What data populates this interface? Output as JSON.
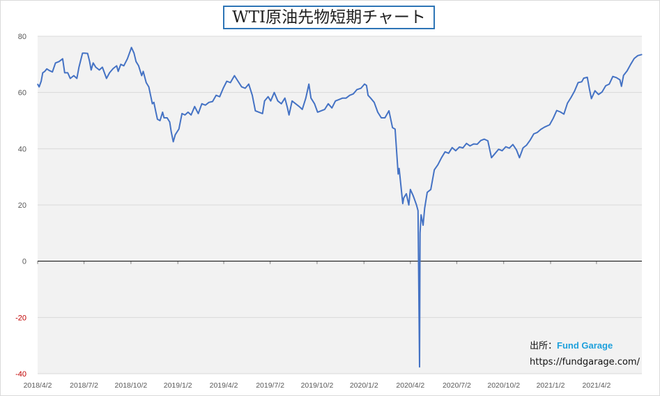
{
  "chart_data": {
    "type": "line",
    "title": "WTI原油先物短期チャート",
    "xlabel": "",
    "ylabel": "",
    "ylim": [
      -40,
      80
    ],
    "yticks": [
      -40,
      -20,
      0,
      20,
      40,
      60,
      80
    ],
    "xlim": [
      "2018-04-02",
      "2021-06-30"
    ],
    "x_tick_labels": [
      "2018/4/2",
      "2018/7/2",
      "2018/10/2",
      "2019/1/2",
      "2019/4/2",
      "2019/7/2",
      "2019/10/2",
      "2020/1/2",
      "2020/4/2",
      "2020/7/2",
      "2020/10/2",
      "2021/1/2",
      "2021/4/2"
    ],
    "grid": true,
    "legend": "none",
    "colors": {
      "line": "#4472c4",
      "zero_line": "#000000",
      "plot_bg": "#f2f2f2",
      "grid": "#d9d9d9",
      "negative_tick": "#c00000"
    },
    "series": [
      {
        "points": [
          [
            "2018-04-02",
            63.0
          ],
          [
            "2018-04-05",
            62.0
          ],
          [
            "2018-04-09",
            64.0
          ],
          [
            "2018-04-12",
            67.0
          ],
          [
            "2018-04-16",
            67.5
          ],
          [
            "2018-04-20",
            68.4
          ],
          [
            "2018-04-25",
            67.8
          ],
          [
            "2018-05-01",
            67.3
          ],
          [
            "2018-05-07",
            70.5
          ],
          [
            "2018-05-14",
            71.0
          ],
          [
            "2018-05-21",
            72.0
          ],
          [
            "2018-05-25",
            67.0
          ],
          [
            "2018-05-31",
            67.0
          ],
          [
            "2018-06-05",
            65.0
          ],
          [
            "2018-06-12",
            66.0
          ],
          [
            "2018-06-18",
            65.0
          ],
          [
            "2018-06-22",
            69.0
          ],
          [
            "2018-06-29",
            74.0
          ],
          [
            "2018-07-03",
            74.0
          ],
          [
            "2018-07-09",
            73.9
          ],
          [
            "2018-07-13",
            71.0
          ],
          [
            "2018-07-16",
            68.0
          ],
          [
            "2018-07-20",
            70.5
          ],
          [
            "2018-07-25",
            69.0
          ],
          [
            "2018-08-01",
            68.0
          ],
          [
            "2018-08-07",
            69.0
          ],
          [
            "2018-08-15",
            65.0
          ],
          [
            "2018-08-21",
            67.0
          ],
          [
            "2018-08-28",
            68.5
          ],
          [
            "2018-09-04",
            69.5
          ],
          [
            "2018-09-07",
            67.5
          ],
          [
            "2018-09-12",
            70.0
          ],
          [
            "2018-09-18",
            69.5
          ],
          [
            "2018-09-25",
            72.0
          ],
          [
            "2018-10-01",
            75.0
          ],
          [
            "2018-10-03",
            76.0
          ],
          [
            "2018-10-08",
            74.0
          ],
          [
            "2018-10-12",
            71.0
          ],
          [
            "2018-10-17",
            69.5
          ],
          [
            "2018-10-23",
            66.0
          ],
          [
            "2018-10-26",
            67.5
          ],
          [
            "2018-11-01",
            63.5
          ],
          [
            "2018-11-06",
            62.0
          ],
          [
            "2018-11-13",
            56.0
          ],
          [
            "2018-11-16",
            56.5
          ],
          [
            "2018-11-20",
            53.0
          ],
          [
            "2018-11-23",
            50.5
          ],
          [
            "2018-11-28",
            50.0
          ],
          [
            "2018-12-03",
            53.0
          ],
          [
            "2018-12-06",
            51.0
          ],
          [
            "2018-12-12",
            51.0
          ],
          [
            "2018-12-17",
            49.5
          ],
          [
            "2018-12-20",
            46.0
          ],
          [
            "2018-12-24",
            42.5
          ],
          [
            "2018-12-28",
            45.0
          ],
          [
            "2019-01-04",
            47.0
          ],
          [
            "2019-01-10",
            52.5
          ],
          [
            "2019-01-16",
            52.0
          ],
          [
            "2019-01-22",
            53.0
          ],
          [
            "2019-01-28",
            52.0
          ],
          [
            "2019-02-04",
            55.0
          ],
          [
            "2019-02-11",
            52.5
          ],
          [
            "2019-02-18",
            56.0
          ],
          [
            "2019-02-25",
            55.5
          ],
          [
            "2019-03-04",
            56.5
          ],
          [
            "2019-03-11",
            56.8
          ],
          [
            "2019-03-18",
            59.0
          ],
          [
            "2019-03-25",
            58.5
          ],
          [
            "2019-04-01",
            61.5
          ],
          [
            "2019-04-08",
            64.0
          ],
          [
            "2019-04-15",
            63.5
          ],
          [
            "2019-04-23",
            66.0
          ],
          [
            "2019-04-30",
            64.0
          ],
          [
            "2019-05-07",
            62.0
          ],
          [
            "2019-05-14",
            61.5
          ],
          [
            "2019-05-21",
            63.0
          ],
          [
            "2019-05-28",
            59.0
          ],
          [
            "2019-06-03",
            53.5
          ],
          [
            "2019-06-10",
            53.0
          ],
          [
            "2019-06-17",
            52.5
          ],
          [
            "2019-06-21",
            57.0
          ],
          [
            "2019-06-28",
            58.5
          ],
          [
            "2019-07-03",
            57.0
          ],
          [
            "2019-07-10",
            60.0
          ],
          [
            "2019-07-17",
            57.0
          ],
          [
            "2019-07-24",
            56.0
          ],
          [
            "2019-07-31",
            58.0
          ],
          [
            "2019-08-05",
            54.5
          ],
          [
            "2019-08-08",
            52.0
          ],
          [
            "2019-08-14",
            57.0
          ],
          [
            "2019-08-21",
            56.0
          ],
          [
            "2019-08-28",
            55.0
          ],
          [
            "2019-09-03",
            54.0
          ],
          [
            "2019-09-10",
            58.0
          ],
          [
            "2019-09-16",
            63.0
          ],
          [
            "2019-09-20",
            58.0
          ],
          [
            "2019-09-27",
            56.0
          ],
          [
            "2019-10-03",
            53.0
          ],
          [
            "2019-10-10",
            53.5
          ],
          [
            "2019-10-17",
            54.0
          ],
          [
            "2019-10-24",
            56.0
          ],
          [
            "2019-10-31",
            54.5
          ],
          [
            "2019-11-07",
            57.0
          ],
          [
            "2019-11-14",
            57.5
          ],
          [
            "2019-11-21",
            58.0
          ],
          [
            "2019-11-28",
            58.0
          ],
          [
            "2019-12-05",
            59.0
          ],
          [
            "2019-12-12",
            59.5
          ],
          [
            "2019-12-19",
            61.0
          ],
          [
            "2019-12-27",
            61.5
          ],
          [
            "2020-01-03",
            63.0
          ],
          [
            "2020-01-07",
            62.5
          ],
          [
            "2020-01-10",
            59.0
          ],
          [
            "2020-01-15",
            58.0
          ],
          [
            "2020-01-22",
            56.5
          ],
          [
            "2020-01-29",
            53.0
          ],
          [
            "2020-02-05",
            51.0
          ],
          [
            "2020-02-12",
            51.0
          ],
          [
            "2020-02-20",
            53.5
          ],
          [
            "2020-02-27",
            47.5
          ],
          [
            "2020-03-03",
            47.0
          ],
          [
            "2020-03-09",
            31.0
          ],
          [
            "2020-03-11",
            33.0
          ],
          [
            "2020-03-18",
            20.5
          ],
          [
            "2020-03-20",
            22.5
          ],
          [
            "2020-03-25",
            24.0
          ],
          [
            "2020-03-30",
            20.0
          ],
          [
            "2020-04-02",
            25.5
          ],
          [
            "2020-04-07",
            23.5
          ],
          [
            "2020-04-09",
            22.5
          ],
          [
            "2020-04-14",
            20.0
          ],
          [
            "2020-04-17",
            18.0
          ],
          [
            "2020-04-20",
            -37.6
          ],
          [
            "2020-04-21",
            10.0
          ],
          [
            "2020-04-23",
            16.5
          ],
          [
            "2020-04-27",
            12.8
          ],
          [
            "2020-04-30",
            18.8
          ],
          [
            "2020-05-05",
            24.5
          ],
          [
            "2020-05-12",
            25.5
          ],
          [
            "2020-05-19",
            32.5
          ],
          [
            "2020-05-26",
            34.3
          ],
          [
            "2020-06-02",
            36.8
          ],
          [
            "2020-06-09",
            38.9
          ],
          [
            "2020-06-16",
            38.4
          ],
          [
            "2020-06-23",
            40.4
          ],
          [
            "2020-06-30",
            39.3
          ],
          [
            "2020-07-07",
            40.6
          ],
          [
            "2020-07-14",
            40.3
          ],
          [
            "2020-07-21",
            41.9
          ],
          [
            "2020-07-28",
            41.0
          ],
          [
            "2020-08-04",
            41.7
          ],
          [
            "2020-08-11",
            41.6
          ],
          [
            "2020-08-18",
            42.9
          ],
          [
            "2020-08-25",
            43.4
          ],
          [
            "2020-09-01",
            42.8
          ],
          [
            "2020-09-08",
            36.8
          ],
          [
            "2020-09-15",
            38.3
          ],
          [
            "2020-09-22",
            39.8
          ],
          [
            "2020-09-29",
            39.3
          ],
          [
            "2020-10-06",
            40.7
          ],
          [
            "2020-10-13",
            40.2
          ],
          [
            "2020-10-20",
            41.5
          ],
          [
            "2020-10-27",
            39.6
          ],
          [
            "2020-11-02",
            36.8
          ],
          [
            "2020-11-09",
            40.3
          ],
          [
            "2020-11-16",
            41.3
          ],
          [
            "2020-11-23",
            43.1
          ],
          [
            "2020-11-30",
            45.3
          ],
          [
            "2020-12-07",
            45.8
          ],
          [
            "2020-12-14",
            46.9
          ],
          [
            "2020-12-21",
            47.7
          ],
          [
            "2020-12-31",
            48.5
          ],
          [
            "2021-01-07",
            50.8
          ],
          [
            "2021-01-14",
            53.6
          ],
          [
            "2021-01-21",
            53.1
          ],
          [
            "2021-01-28",
            52.3
          ],
          [
            "2021-02-04",
            56.2
          ],
          [
            "2021-02-11",
            58.2
          ],
          [
            "2021-02-18",
            60.5
          ],
          [
            "2021-02-25",
            63.5
          ],
          [
            "2021-03-04",
            63.8
          ],
          [
            "2021-03-08",
            65.1
          ],
          [
            "2021-03-15",
            65.4
          ],
          [
            "2021-03-19",
            61.4
          ],
          [
            "2021-03-23",
            57.8
          ],
          [
            "2021-03-30",
            60.6
          ],
          [
            "2021-04-06",
            59.3
          ],
          [
            "2021-04-13",
            60.2
          ],
          [
            "2021-04-20",
            62.4
          ],
          [
            "2021-04-27",
            63.0
          ],
          [
            "2021-05-04",
            65.7
          ],
          [
            "2021-05-11",
            65.3
          ],
          [
            "2021-05-18",
            64.5
          ],
          [
            "2021-05-21",
            62.2
          ],
          [
            "2021-05-25",
            66.1
          ],
          [
            "2021-06-01",
            67.7
          ],
          [
            "2021-06-08",
            70.0
          ],
          [
            "2021-06-15",
            72.1
          ],
          [
            "2021-06-22",
            73.1
          ],
          [
            "2021-06-30",
            73.5
          ]
        ]
      }
    ]
  },
  "credit": {
    "source_label": "出所：",
    "brand": "Fund Garage",
    "url": "https://fundgarage.com/"
  }
}
